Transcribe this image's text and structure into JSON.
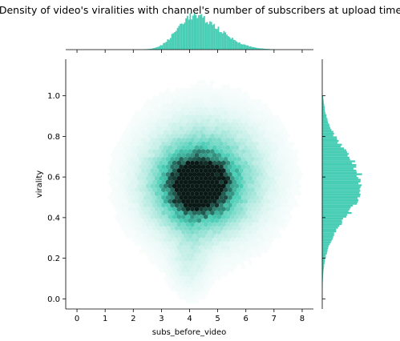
{
  "chart_data": {
    "type": "hexbin_joint",
    "title": "Density of video's viralities with channel's number of subscribers at upload time",
    "xlabel": "subs_before_video",
    "ylabel": "virality",
    "xlim": [
      -0.4,
      8.4
    ],
    "ylim": [
      -0.05,
      1.18
    ],
    "xticks": [
      "0",
      "1",
      "2",
      "3",
      "4",
      "5",
      "6",
      "7",
      "8"
    ],
    "yticks": [
      "0.0",
      "0.2",
      "0.4",
      "0.6",
      "0.8",
      "1.0"
    ],
    "color": "#48cdb5",
    "density_peak": {
      "x": 4.0,
      "y": 0.52
    },
    "marginal_x": {
      "peak": 4.1,
      "range": [
        1.5,
        7.5
      ]
    },
    "marginal_y": {
      "peak": 0.56,
      "range": [
        0.0,
        1.0
      ]
    }
  }
}
